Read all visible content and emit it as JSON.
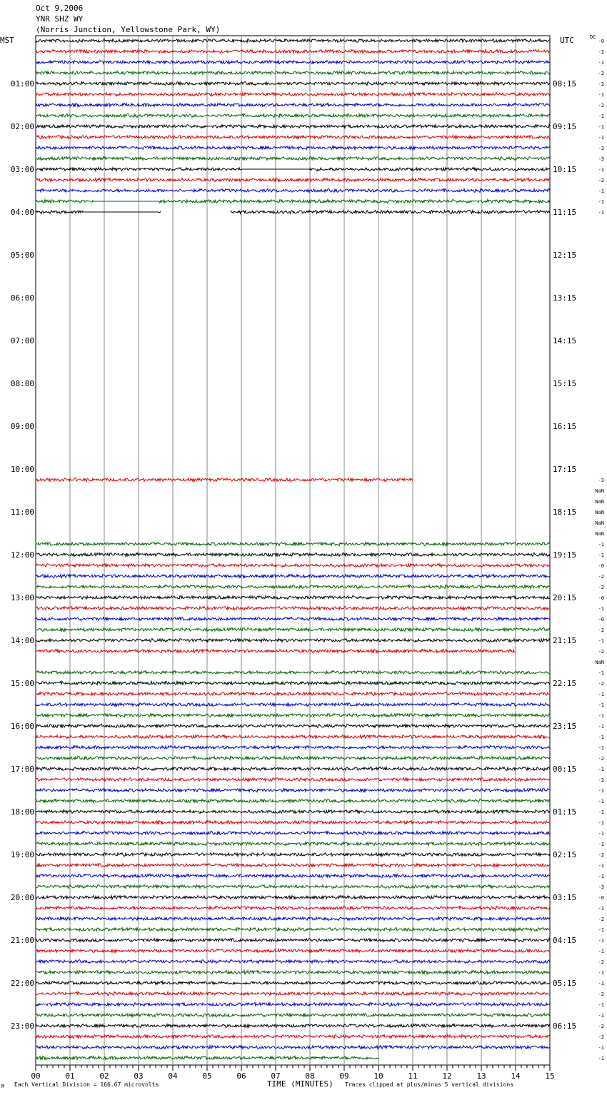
{
  "header": {
    "date": "Oct 9,2006",
    "station": "YNR SHZ WY",
    "location": "(Norris Junction, Yellowstone Park, WY)"
  },
  "left_tz": "MST",
  "right_tz": "UTC",
  "dc_label": "DC",
  "footer": {
    "scale": "Each Vertical Division =  166.67 microvolts",
    "xlabel": "TIME (MINUTES)",
    "clip": "Traces clipped at plus/minus 5 vertical divisions",
    "corner": "M"
  },
  "colors": {
    "trace_cycle": [
      "#000000",
      "#dd0000",
      "#0000cc",
      "#006600"
    ],
    "grid": "#888888"
  },
  "chart_data": {
    "type": "line",
    "title": "YNR SHZ WY",
    "xlabel": "TIME (MINUTES)",
    "x_ticks": [
      "00",
      "01",
      "02",
      "03",
      "04",
      "05",
      "06",
      "07",
      "08",
      "09",
      "10",
      "11",
      "12",
      "13",
      "14",
      "15"
    ],
    "xlim": [
      0,
      15
    ],
    "rows_per_hour": 4,
    "minutes_per_row": 15,
    "left_hour_labels": [
      "01:00",
      "02:00",
      "03:00",
      "04:00",
      "05:00",
      "06:00",
      "07:00",
      "08:00",
      "09:00",
      "10:00",
      "11:00",
      "12:00",
      "13:00",
      "14:00",
      "15:00",
      "16:00",
      "17:00",
      "18:00",
      "19:00",
      "20:00",
      "21:00",
      "22:00",
      "23:00"
    ],
    "right_hour_labels": [
      "08:15",
      "09:15",
      "10:15",
      "11:15",
      "12:15",
      "13:15",
      "14:15",
      "15:15",
      "16:15",
      "17:15",
      "18:15",
      "19:15",
      "20:15",
      "21:15",
      "22:15",
      "23:15",
      "00:15",
      "01:15",
      "02:15",
      "03:15",
      "04:15",
      "05:15",
      "06:15"
    ],
    "traces": [
      {
        "row": 0,
        "segments": [
          [
            0,
            15
          ]
        ],
        "dc": "-0"
      },
      {
        "row": 1,
        "segments": [
          [
            0,
            15
          ]
        ],
        "dc": "-2"
      },
      {
        "row": 2,
        "segments": [
          [
            0,
            15
          ]
        ],
        "dc": "-1"
      },
      {
        "row": 3,
        "segments": [
          [
            0,
            15
          ]
        ],
        "dc": "-2"
      },
      {
        "row": 4,
        "segments": [
          [
            0,
            15
          ]
        ],
        "dc": "-2"
      },
      {
        "row": 5,
        "segments": [
          [
            0,
            15
          ]
        ],
        "dc": "-1"
      },
      {
        "row": 6,
        "segments": [
          [
            0,
            15
          ]
        ],
        "dc": "-2"
      },
      {
        "row": 7,
        "segments": [
          [
            0,
            15
          ]
        ],
        "dc": "-1"
      },
      {
        "row": 8,
        "segments": [
          [
            0,
            15
          ]
        ],
        "dc": "-1"
      },
      {
        "row": 9,
        "segments": [
          [
            0,
            15
          ]
        ],
        "dc": "-1"
      },
      {
        "row": 10,
        "segments": [
          [
            0,
            15
          ]
        ],
        "dc": "-2"
      },
      {
        "row": 11,
        "segments": [
          [
            0,
            15
          ]
        ],
        "dc": "-3"
      },
      {
        "row": 12,
        "segments": [
          [
            0,
            6
          ],
          [
            8,
            15
          ]
        ],
        "flat": [
          [
            6,
            8
          ]
        ],
        "dc": "-1"
      },
      {
        "row": 13,
        "segments": [
          [
            0,
            15
          ]
        ],
        "dc": "-2"
      },
      {
        "row": 14,
        "segments": [
          [
            0,
            15
          ]
        ],
        "dc": "-1"
      },
      {
        "row": 15,
        "segments": [
          [
            0,
            1.7
          ],
          [
            3.6,
            15
          ]
        ],
        "flat": [
          [
            1.7,
            3.6
          ]
        ],
        "dc": "-1"
      },
      {
        "row": 16,
        "segments": [
          [
            0,
            1.4
          ],
          [
            3.6,
            3.65
          ],
          [
            5.7,
            15
          ]
        ],
        "flat": [
          [
            1.4,
            3.6
          ]
        ],
        "dc": "-1"
      },
      {
        "row": 41,
        "segments": [
          [
            0,
            11
          ]
        ],
        "dc": "-3"
      },
      {
        "row": 42,
        "segments": [],
        "dc": "NaN"
      },
      {
        "row": 43,
        "segments": [],
        "dc": "NaN"
      },
      {
        "row": 44,
        "segments": [],
        "dc": "NaN"
      },
      {
        "row": 45,
        "segments": [],
        "dc": "NaN"
      },
      {
        "row": 46,
        "segments": [],
        "dc": "NaN"
      },
      {
        "row": 47,
        "segments": [
          [
            0,
            15
          ]
        ],
        "dc": "-1"
      },
      {
        "row": 48,
        "segments": [
          [
            0,
            15
          ]
        ],
        "dc": "-1"
      },
      {
        "row": 49,
        "segments": [
          [
            0,
            15
          ]
        ],
        "dc": "-0"
      },
      {
        "row": 50,
        "segments": [
          [
            0,
            15
          ]
        ],
        "dc": "-2"
      },
      {
        "row": 51,
        "segments": [
          [
            0,
            15
          ]
        ],
        "dc": "-2"
      },
      {
        "row": 52,
        "segments": [
          [
            0,
            15
          ]
        ],
        "dc": "-0"
      },
      {
        "row": 53,
        "segments": [
          [
            0,
            15
          ]
        ],
        "dc": "-1"
      },
      {
        "row": 54,
        "segments": [
          [
            0,
            15
          ]
        ],
        "dc": "-0"
      },
      {
        "row": 55,
        "segments": [
          [
            0,
            15
          ]
        ],
        "dc": "-2"
      },
      {
        "row": 56,
        "segments": [
          [
            0,
            15
          ]
        ],
        "dc": "-1"
      },
      {
        "row": 57,
        "segments": [
          [
            0,
            14
          ]
        ],
        "dc": "-2"
      },
      {
        "row": 58,
        "segments": [],
        "dc": "NaN"
      },
      {
        "row": 59,
        "segments": [
          [
            0,
            15
          ]
        ],
        "dc": "-1"
      },
      {
        "row": 60,
        "segments": [
          [
            0,
            15
          ]
        ],
        "dc": "-2"
      },
      {
        "row": 61,
        "segments": [
          [
            0,
            15
          ]
        ],
        "dc": "-1"
      },
      {
        "row": 62,
        "segments": [
          [
            0,
            15
          ]
        ],
        "dc": "-1"
      },
      {
        "row": 63,
        "segments": [
          [
            0,
            15
          ]
        ],
        "dc": "-1"
      },
      {
        "row": 64,
        "segments": [
          [
            0,
            15
          ]
        ],
        "dc": "-1"
      },
      {
        "row": 65,
        "segments": [
          [
            0,
            15
          ]
        ],
        "dc": "-1"
      },
      {
        "row": 66,
        "segments": [
          [
            0,
            15
          ]
        ],
        "dc": "-1"
      },
      {
        "row": 67,
        "segments": [
          [
            0,
            15
          ]
        ],
        "dc": "-2"
      },
      {
        "row": 68,
        "segments": [
          [
            0,
            15
          ]
        ],
        "dc": "-1"
      },
      {
        "row": 69,
        "segments": [
          [
            0,
            15
          ]
        ],
        "dc": "-2"
      },
      {
        "row": 70,
        "segments": [
          [
            0,
            15
          ]
        ],
        "dc": "-1"
      },
      {
        "row": 71,
        "segments": [
          [
            0,
            15
          ]
        ],
        "dc": "-1"
      },
      {
        "row": 72,
        "segments": [
          [
            0,
            15
          ]
        ],
        "dc": "-1"
      },
      {
        "row": 73,
        "segments": [
          [
            0,
            15
          ]
        ],
        "dc": "-1"
      },
      {
        "row": 74,
        "segments": [
          [
            0,
            15
          ]
        ],
        "dc": "-1"
      },
      {
        "row": 75,
        "segments": [
          [
            0,
            15
          ]
        ],
        "dc": "-1"
      },
      {
        "row": 76,
        "segments": [
          [
            0,
            15
          ]
        ],
        "dc": "-2"
      },
      {
        "row": 77,
        "segments": [
          [
            0,
            15
          ]
        ],
        "dc": "-1"
      },
      {
        "row": 78,
        "segments": [
          [
            0,
            15
          ]
        ],
        "dc": "-1"
      },
      {
        "row": 79,
        "segments": [
          [
            0,
            15
          ]
        ],
        "dc": "-3"
      },
      {
        "row": 80,
        "segments": [
          [
            0,
            15
          ]
        ],
        "dc": "-0"
      },
      {
        "row": 81,
        "segments": [
          [
            0,
            15
          ]
        ],
        "dc": "-1"
      },
      {
        "row": 82,
        "segments": [
          [
            0,
            15
          ]
        ],
        "dc": "-2"
      },
      {
        "row": 83,
        "segments": [
          [
            0,
            15
          ]
        ],
        "dc": "-1"
      },
      {
        "row": 84,
        "segments": [
          [
            0,
            15
          ]
        ],
        "dc": "-1"
      },
      {
        "row": 85,
        "segments": [
          [
            0,
            15
          ]
        ],
        "dc": "-1"
      },
      {
        "row": 86,
        "segments": [
          [
            0,
            15
          ]
        ],
        "dc": "-2"
      },
      {
        "row": 87,
        "segments": [
          [
            0,
            15
          ]
        ],
        "dc": "-1"
      },
      {
        "row": 88,
        "segments": [
          [
            0,
            15
          ]
        ],
        "dc": "-1"
      },
      {
        "row": 89,
        "segments": [
          [
            0,
            15
          ]
        ],
        "dc": "-2"
      },
      {
        "row": 90,
        "segments": [
          [
            0,
            15
          ]
        ],
        "dc": "-1"
      },
      {
        "row": 91,
        "segments": [
          [
            0,
            15
          ]
        ],
        "dc": "-1"
      },
      {
        "row": 92,
        "segments": [
          [
            0,
            15
          ]
        ],
        "dc": "-2"
      },
      {
        "row": 93,
        "segments": [
          [
            0,
            15
          ]
        ],
        "dc": "-2"
      },
      {
        "row": 94,
        "segments": [
          [
            0,
            15
          ]
        ],
        "dc": "-1"
      },
      {
        "row": 95,
        "segments": [
          [
            0,
            10
          ]
        ],
        "dc": "-1"
      }
    ]
  }
}
